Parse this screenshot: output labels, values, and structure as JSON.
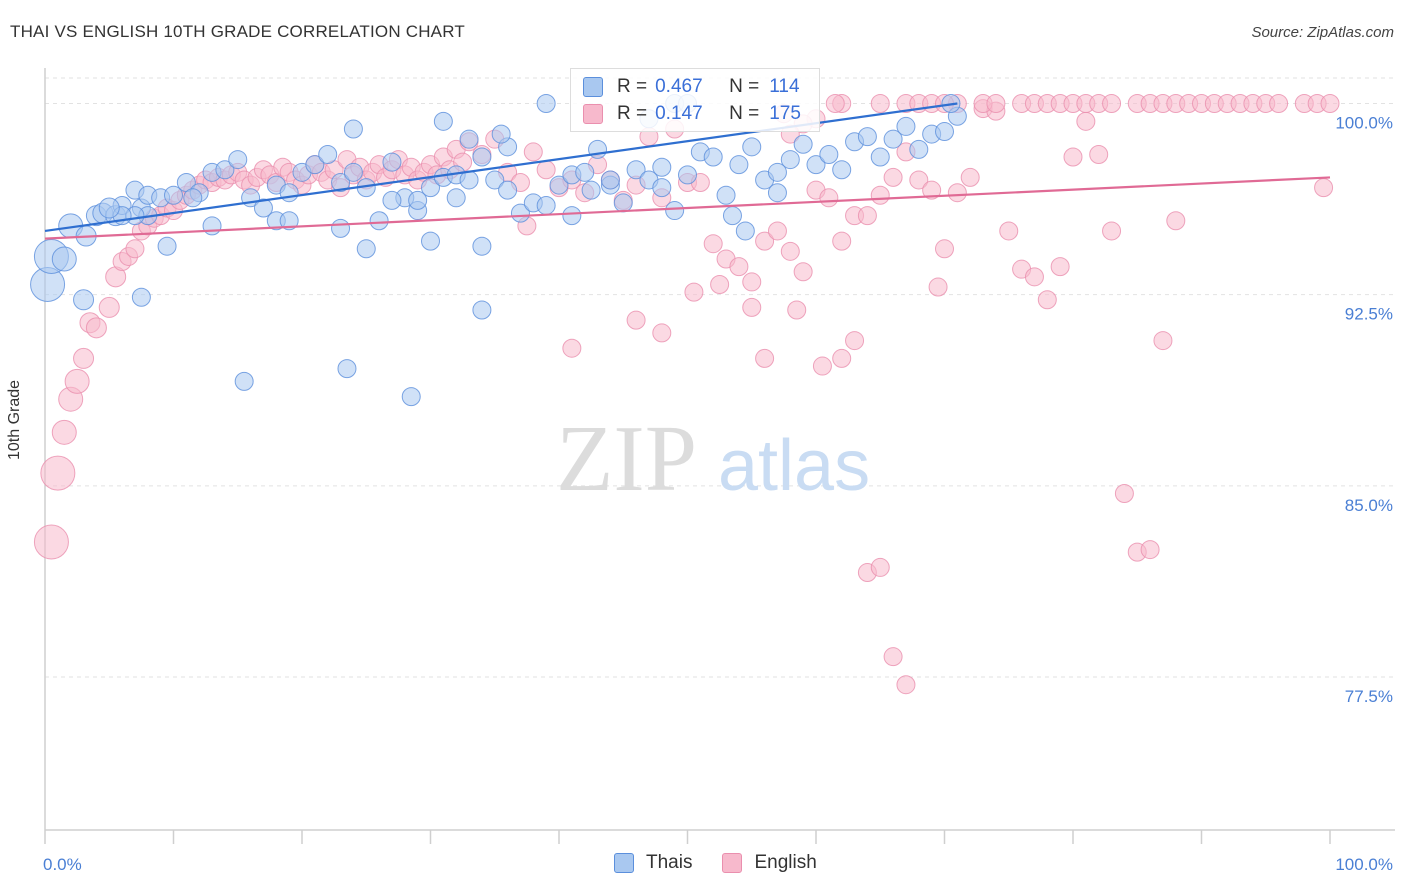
{
  "header": {
    "title": "THAI VS ENGLISH 10TH GRADE CORRELATION CHART",
    "source": "Source: ZipAtlas.com"
  },
  "watermark": {
    "zip": "ZIP",
    "atlas": "atlas"
  },
  "legend": {
    "thais": {
      "r_label": "R =",
      "r_value": "0.467",
      "n_label": "N =",
      "n_value": "114"
    },
    "english": {
      "r_label": "R =",
      "r_value": "0.147",
      "n_label": "N =",
      "n_value": "175"
    }
  },
  "bottom_legend": {
    "thais": "Thais",
    "english": "English"
  },
  "colors": {
    "thais_fill": "#a9c8f0",
    "thais_stroke": "#5b8fdc",
    "thais_line": "#2f6fd0",
    "english_fill": "#f7b9cc",
    "english_stroke": "#ea8fae",
    "english_line": "#e06a95",
    "axis_text": "#4a7fd4",
    "grid": "#e2e2e2"
  },
  "chart_data": {
    "type": "scatter",
    "title": "THAI VS ENGLISH 10TH GRADE CORRELATION CHART",
    "xlabel": "",
    "ylabel": "10th Grade",
    "xlim": [
      0,
      100
    ],
    "ylim": [
      71.5,
      101.0
    ],
    "x_tick_labels": [
      "0.0%",
      "100.0%"
    ],
    "y_ticks": [
      77.5,
      85.0,
      92.5,
      100.0
    ],
    "y_tick_labels": [
      "77.5%",
      "85.0%",
      "92.5%",
      "100.0%"
    ],
    "legend_position": "top-center",
    "series": [
      {
        "name": "Thais",
        "trend": {
          "x": [
            0,
            71
          ],
          "y": [
            95.0,
            100.0
          ]
        },
        "points": [
          [
            0.2,
            92.9
          ],
          [
            0.5,
            94.0
          ],
          [
            1.5,
            93.9
          ],
          [
            3,
            92.3
          ],
          [
            2,
            95.2
          ],
          [
            3.2,
            94.8
          ],
          [
            4,
            95.6
          ],
          [
            4.5,
            95.7
          ],
          [
            5.5,
            95.6
          ],
          [
            6,
            96.0
          ],
          [
            7,
            96.6
          ],
          [
            7.5,
            95.9
          ],
          [
            8,
            96.4
          ],
          [
            8,
            95.6
          ],
          [
            7,
            95.6
          ],
          [
            6,
            95.6
          ],
          [
            5,
            95.9
          ],
          [
            9,
            96.3
          ],
          [
            10,
            96.4
          ],
          [
            11,
            96.9
          ],
          [
            12,
            96.5
          ],
          [
            13,
            97.3
          ],
          [
            14,
            97.4
          ],
          [
            15,
            97.8
          ],
          [
            16,
            96.3
          ],
          [
            17,
            95.9
          ],
          [
            18,
            96.8
          ],
          [
            19,
            96.5
          ],
          [
            20,
            97.3
          ],
          [
            21,
            97.6
          ],
          [
            22,
            98.0
          ],
          [
            23,
            96.9
          ],
          [
            24,
            97.3
          ],
          [
            25,
            96.7
          ],
          [
            26,
            95.4
          ],
          [
            27,
            97.7
          ],
          [
            28,
            96.3
          ],
          [
            29,
            95.8
          ],
          [
            30,
            96.7
          ],
          [
            31,
            97.1
          ],
          [
            32,
            97.2
          ],
          [
            33,
            98.6
          ],
          [
            34,
            97.9
          ],
          [
            35,
            97.0
          ],
          [
            36,
            96.6
          ],
          [
            37,
            95.7
          ],
          [
            38,
            96.1
          ],
          [
            39,
            96.0
          ],
          [
            40,
            96.8
          ],
          [
            41,
            97.2
          ],
          [
            42,
            97.3
          ],
          [
            43,
            98.2
          ],
          [
            44,
            96.8
          ],
          [
            45,
            96.1
          ],
          [
            46,
            97.4
          ],
          [
            47,
            97.0
          ],
          [
            48,
            97.5
          ],
          [
            49,
            95.8
          ],
          [
            50,
            97.2
          ],
          [
            51,
            98.1
          ],
          [
            52,
            97.9
          ],
          [
            53,
            96.4
          ],
          [
            54,
            97.6
          ],
          [
            55,
            98.3
          ],
          [
            56,
            97.0
          ],
          [
            57,
            96.5
          ],
          [
            58,
            97.8
          ],
          [
            59,
            98.4
          ],
          [
            60,
            97.6
          ],
          [
            61,
            98.0
          ],
          [
            62,
            97.4
          ],
          [
            63,
            98.5
          ],
          [
            64,
            98.7
          ],
          [
            65,
            97.9
          ],
          [
            66,
            98.6
          ],
          [
            67,
            99.1
          ],
          [
            68,
            98.2
          ],
          [
            69,
            98.8
          ],
          [
            70,
            98.9
          ],
          [
            71,
            99.5
          ],
          [
            13,
            95.2
          ],
          [
            18,
            95.4
          ],
          [
            25,
            94.3
          ],
          [
            30,
            94.6
          ],
          [
            34,
            94.4
          ],
          [
            19,
            95.4
          ],
          [
            23,
            95.1
          ],
          [
            29,
            96.2
          ],
          [
            33,
            97.0
          ],
          [
            41,
            95.6
          ],
          [
            9.5,
            94.4
          ],
          [
            7.5,
            92.4
          ],
          [
            15.5,
            89.1
          ],
          [
            23.5,
            89.6
          ],
          [
            28.5,
            88.5
          ],
          [
            34,
            91.9
          ],
          [
            54.5,
            95.0
          ],
          [
            53.5,
            95.6
          ],
          [
            57,
            97.3
          ],
          [
            42.5,
            96.6
          ],
          [
            48,
            96.7
          ],
          [
            44,
            97.0
          ],
          [
            24,
            99.0
          ],
          [
            31,
            99.3
          ],
          [
            36,
            98.3
          ],
          [
            39,
            100.0
          ],
          [
            49,
            100.0
          ],
          [
            50,
            100.0
          ],
          [
            70.5,
            100.0
          ],
          [
            47,
            99.4
          ],
          [
            35.5,
            98.8
          ],
          [
            32,
            96.3
          ],
          [
            27,
            96.2
          ],
          [
            11.5,
            96.3
          ]
        ]
      },
      {
        "name": "English",
        "trend": {
          "x": [
            0,
            100
          ],
          "y": [
            94.7,
            97.1
          ]
        },
        "points": [
          [
            0.5,
            82.8
          ],
          [
            1,
            85.5
          ],
          [
            1.5,
            87.1
          ],
          [
            2,
            88.4
          ],
          [
            2.5,
            89.1
          ],
          [
            3,
            90.0
          ],
          [
            3.5,
            91.4
          ],
          [
            4,
            91.2
          ],
          [
            5,
            92.0
          ],
          [
            5.5,
            93.2
          ],
          [
            6,
            93.8
          ],
          [
            6.5,
            94.0
          ],
          [
            7,
            94.3
          ],
          [
            7.5,
            95.0
          ],
          [
            8,
            95.2
          ],
          [
            8.5,
            95.5
          ],
          [
            9,
            95.6
          ],
          [
            9.5,
            95.9
          ],
          [
            10,
            95.8
          ],
          [
            10.5,
            96.2
          ],
          [
            11,
            96.4
          ],
          [
            11.5,
            96.6
          ],
          [
            12,
            96.8
          ],
          [
            12.5,
            97.0
          ],
          [
            13,
            96.9
          ],
          [
            13.5,
            97.1
          ],
          [
            14,
            97.0
          ],
          [
            14.5,
            97.2
          ],
          [
            15,
            97.3
          ],
          [
            15.5,
            97.0
          ],
          [
            16,
            96.8
          ],
          [
            16.5,
            97.1
          ],
          [
            17,
            97.4
          ],
          [
            17.5,
            97.2
          ],
          [
            18,
            96.9
          ],
          [
            18.5,
            97.5
          ],
          [
            19,
            97.3
          ],
          [
            19.5,
            97.0
          ],
          [
            20,
            96.8
          ],
          [
            20.5,
            97.2
          ],
          [
            21,
            97.6
          ],
          [
            21.5,
            97.3
          ],
          [
            22,
            97.0
          ],
          [
            22.5,
            97.4
          ],
          [
            23,
            96.7
          ],
          [
            23.5,
            97.8
          ],
          [
            24,
            97.2
          ],
          [
            24.5,
            97.5
          ],
          [
            25,
            97.0
          ],
          [
            25.5,
            97.3
          ],
          [
            26,
            97.6
          ],
          [
            26.5,
            97.1
          ],
          [
            27,
            97.4
          ],
          [
            27.5,
            97.8
          ],
          [
            28,
            97.2
          ],
          [
            28.5,
            97.5
          ],
          [
            29,
            97.0
          ],
          [
            29.5,
            97.3
          ],
          [
            30,
            97.6
          ],
          [
            30.5,
            97.2
          ],
          [
            31,
            97.9
          ],
          [
            31.5,
            97.4
          ],
          [
            32,
            98.2
          ],
          [
            32.5,
            97.7
          ],
          [
            33,
            98.5
          ],
          [
            34,
            98.0
          ],
          [
            35,
            98.6
          ],
          [
            36,
            97.3
          ],
          [
            37,
            96.9
          ],
          [
            38,
            98.1
          ],
          [
            39,
            97.4
          ],
          [
            40,
            96.7
          ],
          [
            41,
            97.0
          ],
          [
            42,
            96.5
          ],
          [
            43,
            97.6
          ],
          [
            44,
            97.0
          ],
          [
            45,
            96.2
          ],
          [
            46,
            96.8
          ],
          [
            47,
            98.7
          ],
          [
            48,
            96.3
          ],
          [
            49,
            99.0
          ],
          [
            50,
            96.9
          ],
          [
            51,
            96.9
          ],
          [
            52,
            94.5
          ],
          [
            53,
            93.9
          ],
          [
            54,
            93.6
          ],
          [
            55,
            93.0
          ],
          [
            56,
            94.6
          ],
          [
            57,
            95.0
          ],
          [
            58,
            94.2
          ],
          [
            59,
            93.4
          ],
          [
            60,
            96.6
          ],
          [
            61,
            96.3
          ],
          [
            62,
            94.6
          ],
          [
            63,
            95.6
          ],
          [
            64,
            95.6
          ],
          [
            65,
            96.4
          ],
          [
            66,
            97.1
          ],
          [
            67,
            98.1
          ],
          [
            68,
            97.0
          ],
          [
            69,
            96.6
          ],
          [
            70,
            94.3
          ],
          [
            71,
            96.5
          ],
          [
            72,
            97.1
          ],
          [
            73,
            99.8
          ],
          [
            74,
            99.7
          ],
          [
            75,
            95.0
          ],
          [
            76,
            93.5
          ],
          [
            77,
            93.2
          ],
          [
            78,
            92.3
          ],
          [
            79,
            93.6
          ],
          [
            80,
            97.9
          ],
          [
            81,
            99.3
          ],
          [
            82,
            98.0
          ],
          [
            83,
            95.0
          ],
          [
            84,
            84.7
          ],
          [
            85,
            82.4
          ],
          [
            86,
            82.5
          ],
          [
            87,
            90.7
          ],
          [
            88,
            95.4
          ],
          [
            37.5,
            95.2
          ],
          [
            41,
            90.4
          ],
          [
            46,
            91.5
          ],
          [
            48,
            91.0
          ],
          [
            50.5,
            92.6
          ],
          [
            52.5,
            92.9
          ],
          [
            55,
            92.0
          ],
          [
            56,
            90.0
          ],
          [
            58.5,
            91.9
          ],
          [
            60.5,
            89.7
          ],
          [
            62,
            90.0
          ],
          [
            63,
            90.7
          ],
          [
            64,
            81.6
          ],
          [
            65,
            81.8
          ],
          [
            66,
            78.3
          ],
          [
            67,
            77.2
          ],
          [
            69.5,
            92.8
          ],
          [
            71,
            100.0
          ],
          [
            73,
            100.0
          ],
          [
            74,
            100.0
          ],
          [
            76,
            100.0
          ],
          [
            77,
            100.0
          ],
          [
            78,
            100.0
          ],
          [
            79,
            100.0
          ],
          [
            80,
            100.0
          ],
          [
            81,
            100.0
          ],
          [
            82,
            100.0
          ],
          [
            83,
            100.0
          ],
          [
            85,
            100.0
          ],
          [
            86,
            100.0
          ],
          [
            87,
            100.0
          ],
          [
            88,
            100.0
          ],
          [
            89,
            100.0
          ],
          [
            90,
            100.0
          ],
          [
            91,
            100.0
          ],
          [
            92,
            100.0
          ],
          [
            93,
            100.0
          ],
          [
            94,
            100.0
          ],
          [
            95,
            100.0
          ],
          [
            96,
            100.0
          ],
          [
            98,
            100.0
          ],
          [
            99,
            100.0
          ],
          [
            100,
            100.0
          ],
          [
            99.5,
            96.7
          ],
          [
            62,
            100.0
          ],
          [
            65,
            100.0
          ],
          [
            67,
            100.0
          ],
          [
            68,
            100.0
          ],
          [
            69,
            100.0
          ],
          [
            70,
            100.0
          ],
          [
            61.5,
            100.0
          ],
          [
            60,
            99.4
          ],
          [
            59,
            99.2
          ],
          [
            57.5,
            99.6
          ],
          [
            58,
            98.8
          ]
        ]
      }
    ]
  }
}
